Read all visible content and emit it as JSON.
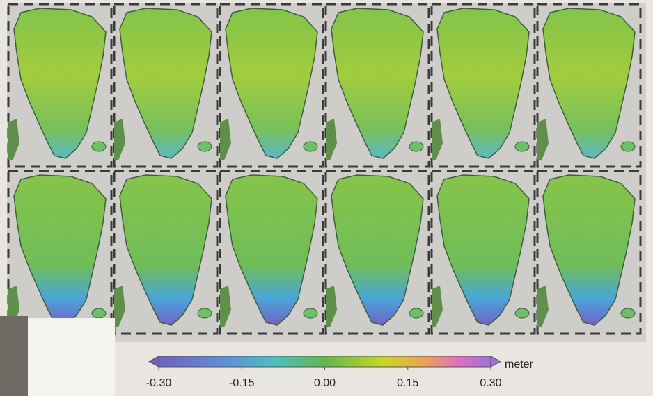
{
  "colorbar": {
    "unit": "meter",
    "ticks": [
      {
        "value": -0.3,
        "label": "-0.30"
      },
      {
        "value": -0.15,
        "label": "-0.15"
      },
      {
        "value": 0,
        "label": "0.00"
      },
      {
        "value": 0.15,
        "label": "0.15"
      },
      {
        "value": 0.3,
        "label": "0.30"
      }
    ]
  }
}
